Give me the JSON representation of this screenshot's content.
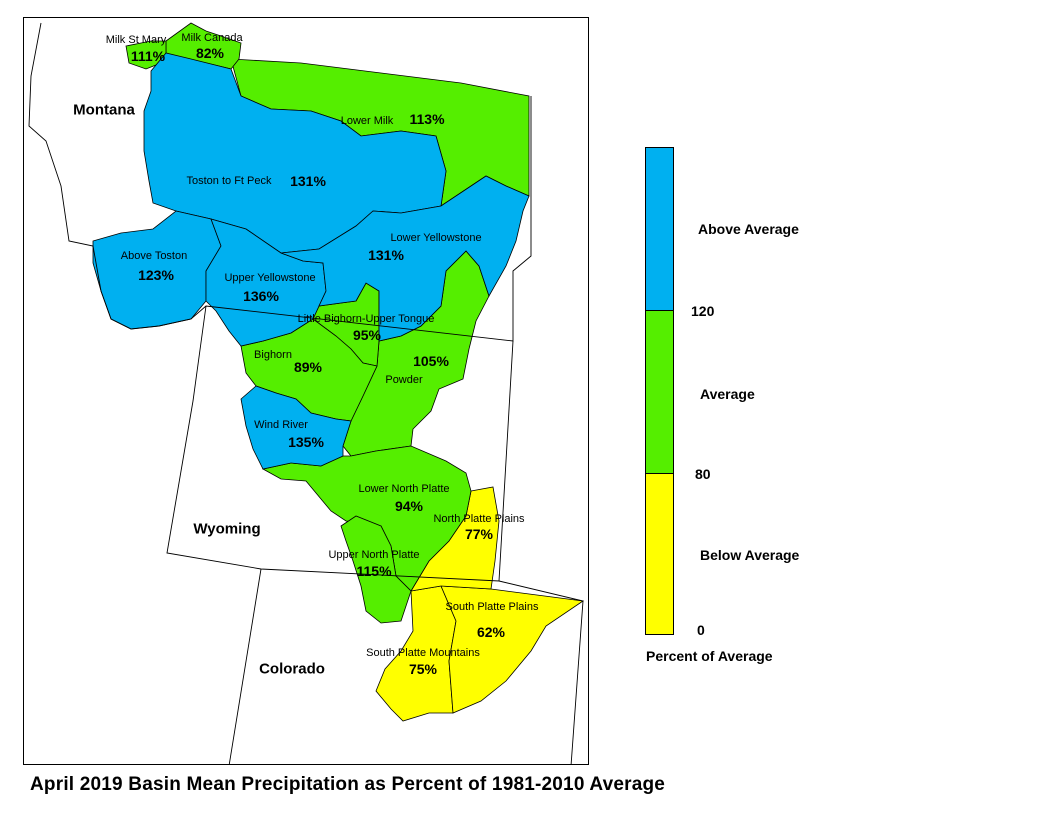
{
  "title": "April 2019 Basin Mean Precipitation as Percent of 1981-2010 Average",
  "states": {
    "montana": "Montana",
    "wyoming": "Wyoming",
    "colorado": "Colorado"
  },
  "colors": {
    "above": "#00b0f0",
    "average": "#55ee00",
    "below": "#ffff00"
  },
  "legend": {
    "title": "Percent of Average",
    "categories": [
      "Above Average",
      "Average",
      "Below Average"
    ],
    "ticks": [
      "120",
      "80",
      "0"
    ]
  },
  "basins": [
    {
      "name": "Milk St Mary",
      "value": "111%",
      "class": "average"
    },
    {
      "name": "Milk Canada",
      "value": "82%",
      "class": "average"
    },
    {
      "name": "Lower Milk",
      "value": "113%",
      "class": "average"
    },
    {
      "name": "Toston to Ft Peck",
      "value": "131%",
      "class": "above"
    },
    {
      "name": "Above Toston",
      "value": "123%",
      "class": "above"
    },
    {
      "name": "Lower Yellowstone",
      "value": "131%",
      "class": "above"
    },
    {
      "name": "Upper Yellowstone",
      "value": "136%",
      "class": "above"
    },
    {
      "name": "Little Bighorn-Upper Tongue",
      "value": "95%",
      "class": "average"
    },
    {
      "name": "Bighorn",
      "value": "89%",
      "class": "average"
    },
    {
      "name": "Powder",
      "value": "105%",
      "class": "average"
    },
    {
      "name": "Wind River",
      "value": "135%",
      "class": "above"
    },
    {
      "name": "Lower North Platte",
      "value": "94%",
      "class": "average"
    },
    {
      "name": "North Platte Plains",
      "value": "77%",
      "class": "below"
    },
    {
      "name": "Upper North Platte",
      "value": "115%",
      "class": "average"
    },
    {
      "name": "South Platte Plains",
      "value": "62%",
      "class": "below"
    },
    {
      "name": "South Platte Mountains",
      "value": "75%",
      "class": "below"
    }
  ]
}
